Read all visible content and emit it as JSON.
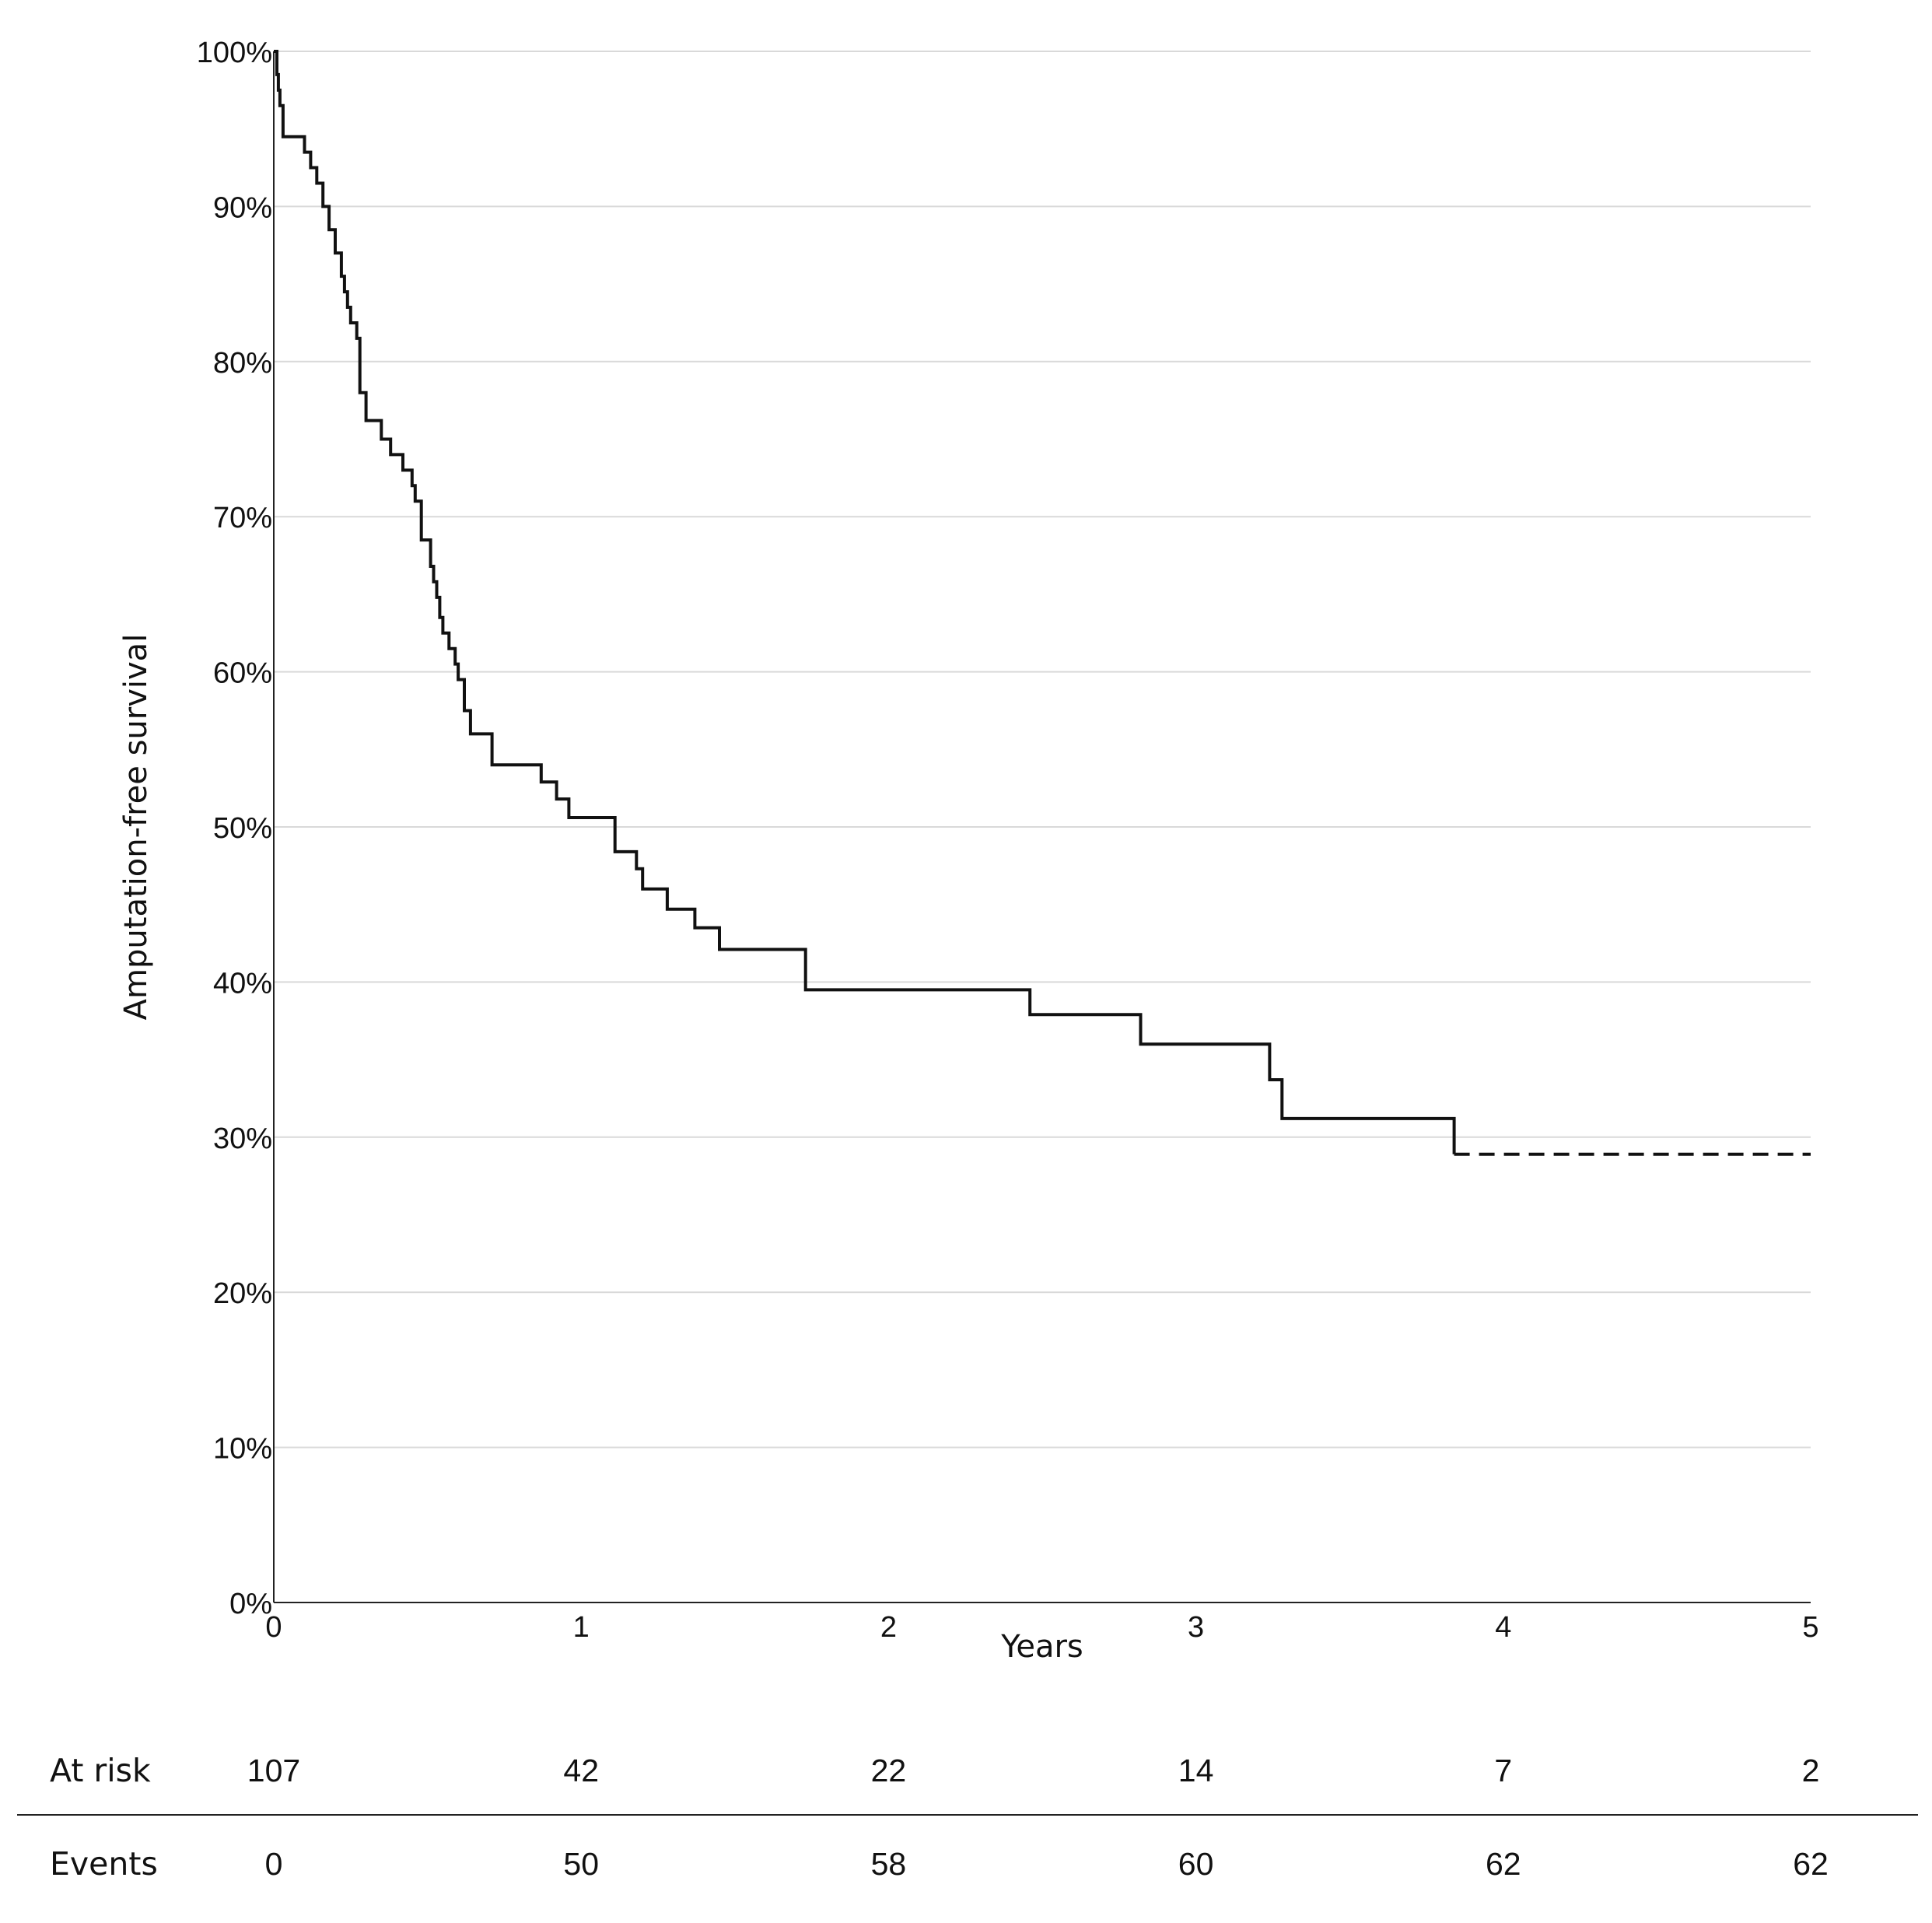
{
  "chart_data": {
    "type": "line",
    "subtype": "kaplan-meier step",
    "title": "",
    "xlabel": "Years",
    "ylabel": "Amputation-free survival",
    "xlim": [
      0,
      5
    ],
    "ylim": [
      0,
      100
    ],
    "grid": "horizontal",
    "x_ticks": [
      0,
      1,
      2,
      3,
      4,
      5
    ],
    "x_tick_labels": [
      "0",
      "1",
      "2",
      "3",
      "4",
      "5"
    ],
    "y_ticks": [
      0,
      10,
      20,
      30,
      40,
      50,
      60,
      70,
      80,
      90,
      100
    ],
    "y_tick_labels": [
      "0%",
      "10%",
      "20%",
      "30%",
      "40%",
      "50%",
      "60%",
      "70%",
      "80%",
      "90%",
      "100%"
    ],
    "series": [
      {
        "style": "solid",
        "x": [
          0,
          0.01,
          0.015,
          0.02,
          0.03,
          0.04,
          0.06,
          0.1,
          0.12,
          0.14,
          0.16,
          0.18,
          0.2,
          0.22,
          0.23,
          0.24,
          0.25,
          0.27,
          0.28,
          0.3,
          0.35,
          0.38,
          0.42,
          0.45,
          0.46,
          0.48,
          0.51,
          0.52,
          0.53,
          0.54,
          0.55,
          0.57,
          0.59,
          0.6,
          0.62,
          0.64,
          0.71,
          0.87,
          0.92,
          0.96,
          1.11,
          1.18,
          1.2,
          1.28,
          1.37,
          1.45,
          1.73,
          2.46,
          2.82,
          3.24,
          3.28,
          3.84
        ],
        "y": [
          100,
          98.5,
          97.5,
          96.5,
          94.5,
          94.5,
          94.5,
          93.5,
          92.5,
          91.5,
          90,
          88.5,
          87,
          85.5,
          84.5,
          83.5,
          82.5,
          81.5,
          78,
          76.2,
          75,
          74,
          73,
          72,
          71,
          68.5,
          66.8,
          65.8,
          64.8,
          63.5,
          62.5,
          61.5,
          60.5,
          59.5,
          57.5,
          56,
          54,
          52.9,
          51.8,
          50.6,
          48.4,
          47.3,
          46,
          44.7,
          43.5,
          42.1,
          39.5,
          37.9,
          36,
          33.7,
          31.2,
          28.9
        ]
      },
      {
        "style": "dashed",
        "x": [
          3.84,
          5
        ],
        "y": [
          28.9,
          28.9
        ]
      }
    ]
  },
  "risk_table": {
    "rows": [
      {
        "label": "At risk",
        "values": [
          "107",
          "42",
          "22",
          "14",
          "7",
          "2"
        ]
      },
      {
        "label": "Events",
        "values": [
          "0",
          "50",
          "58",
          "60",
          "62",
          "62"
        ]
      }
    ]
  }
}
